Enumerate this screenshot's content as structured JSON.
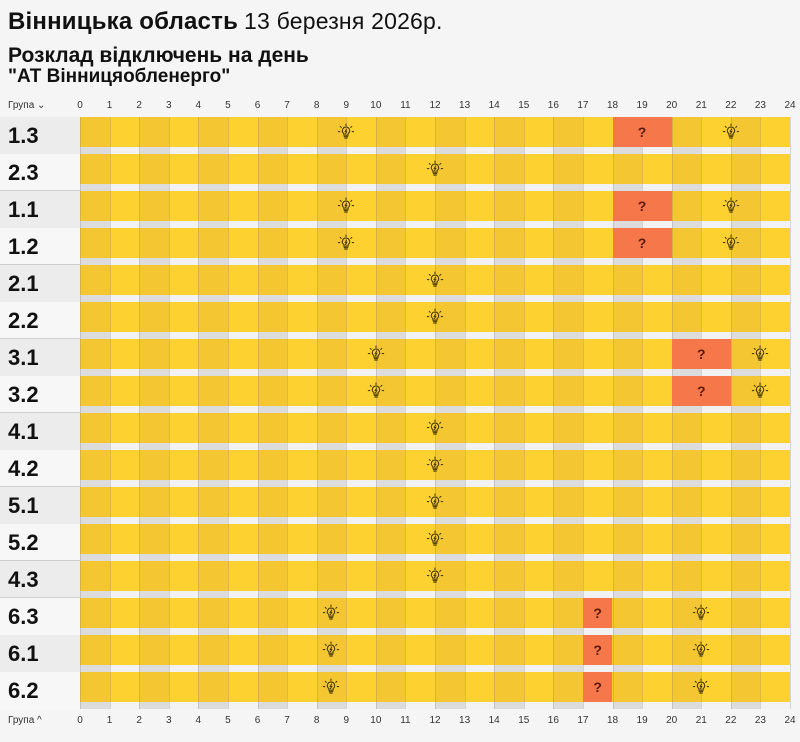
{
  "header": {
    "region": "Вінницька область",
    "date": "13 березня 2026р.",
    "subtitle": "Розклад відключень на день",
    "company": "\"АТ Вінницяобленерго\""
  },
  "axis": {
    "group_label_top": "Група ⌄",
    "group_label_bottom": "Група ^",
    "hours": [
      "0",
      "1",
      "2",
      "3",
      "4",
      "5",
      "6",
      "7",
      "8",
      "9",
      "10",
      "11",
      "12",
      "13",
      "14",
      "15",
      "16",
      "17",
      "18",
      "19",
      "20",
      "21",
      "22",
      "23",
      "24"
    ]
  },
  "colors": {
    "power_on_a": "#fdd130",
    "power_on_b": "#f3c632",
    "possible_outage": "#f5774a",
    "gap_a": "#f2f2f2",
    "gap_b": "#dcdcdc"
  },
  "legend_icons": {
    "bulb": "lightbulb-icon",
    "question": "question-mark"
  },
  "rows": [
    {
      "group": "1.3",
      "shade": "dark",
      "bulbs": [
        9,
        22
      ],
      "possible": [
        [
          18,
          20
        ]
      ],
      "sep_after": false
    },
    {
      "group": "2.3",
      "shade": "light",
      "bulbs": [
        12
      ],
      "possible": [],
      "sep_after": true
    },
    {
      "group": "1.1",
      "shade": "dark",
      "bulbs": [
        9,
        22
      ],
      "possible": [
        [
          18,
          20
        ]
      ],
      "sep_after": false
    },
    {
      "group": "1.2",
      "shade": "light",
      "bulbs": [
        9,
        22
      ],
      "possible": [
        [
          18,
          20
        ]
      ],
      "sep_after": true
    },
    {
      "group": "2.1",
      "shade": "dark",
      "bulbs": [
        12
      ],
      "possible": [],
      "sep_after": false
    },
    {
      "group": "2.2",
      "shade": "light",
      "bulbs": [
        12
      ],
      "possible": [],
      "sep_after": true
    },
    {
      "group": "3.1",
      "shade": "dark",
      "bulbs": [
        10,
        23
      ],
      "possible": [
        [
          20,
          22
        ]
      ],
      "sep_after": false
    },
    {
      "group": "3.2",
      "shade": "light",
      "bulbs": [
        10,
        23
      ],
      "possible": [
        [
          20,
          22
        ]
      ],
      "sep_after": true
    },
    {
      "group": "4.1",
      "shade": "dark",
      "bulbs": [
        12
      ],
      "possible": [],
      "sep_after": false
    },
    {
      "group": "4.2",
      "shade": "light",
      "bulbs": [
        12
      ],
      "possible": [],
      "sep_after": true
    },
    {
      "group": "5.1",
      "shade": "dark",
      "bulbs": [
        12
      ],
      "possible": [],
      "sep_after": false
    },
    {
      "group": "5.2",
      "shade": "light",
      "bulbs": [
        12
      ],
      "possible": [],
      "sep_after": true
    },
    {
      "group": "4.3",
      "shade": "dark",
      "bulbs": [
        12
      ],
      "possible": [],
      "sep_after": true
    },
    {
      "group": "6.3",
      "shade": "light",
      "bulbs": [
        8.5,
        21
      ],
      "possible": [
        [
          17,
          18
        ]
      ],
      "sep_after": false
    },
    {
      "group": "6.1",
      "shade": "dark",
      "bulbs": [
        8.5,
        21
      ],
      "possible": [
        [
          17,
          18
        ]
      ],
      "sep_after": false
    },
    {
      "group": "6.2",
      "shade": "light",
      "bulbs": [
        8.5,
        21
      ],
      "possible": [
        [
          17,
          18
        ]
      ],
      "sep_after": false
    }
  ],
  "possible_symbol": "?"
}
